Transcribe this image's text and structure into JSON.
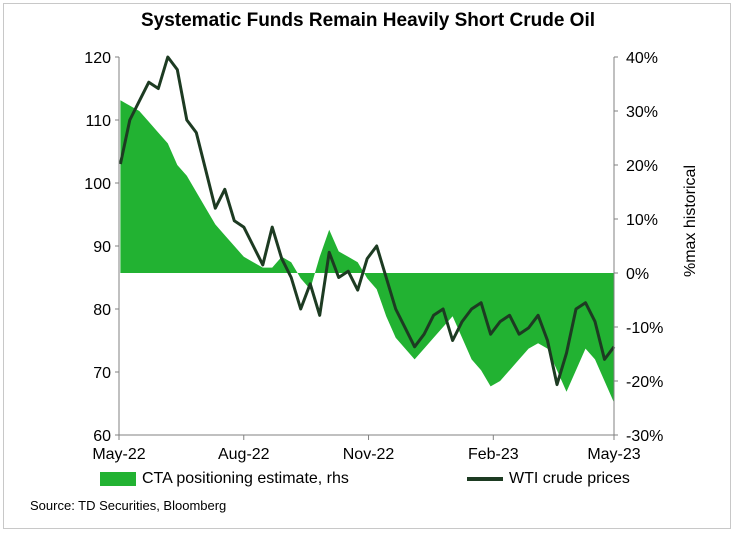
{
  "title": "Systematic Funds Remain Heavily Short Crude Oil",
  "source": "Source: TD Securities, Bloomberg",
  "colors": {
    "cta_fill": "#22b232",
    "wti_line": "#1d3b22",
    "axis": "#333333"
  },
  "chart_data": {
    "type": "area",
    "title": "Systematic Funds Remain Heavily Short Crude Oil",
    "xlabel": "",
    "ylabel_left": "",
    "ylabel_right": "%max historical",
    "ylim_left": [
      60,
      120
    ],
    "ylim_right": [
      -30,
      40
    ],
    "yticks_left": [
      "120",
      "110",
      "100",
      "90",
      "80",
      "70",
      "60"
    ],
    "yticks_right": [
      "40%",
      "30%",
      "20%",
      "10%",
      "0%",
      "-10%",
      "-20%",
      "-30%"
    ],
    "yticks_left_values": [
      120,
      110,
      100,
      90,
      80,
      70,
      60
    ],
    "yticks_right_values": [
      40,
      30,
      20,
      10,
      0,
      -10,
      -20,
      -30
    ],
    "x_start": "2022-05-01",
    "x_end": "2023-05-01",
    "xtick_labels": [
      "May-22",
      "Aug-22",
      "Nov-22",
      "Feb-23",
      "May-23"
    ],
    "xtick_dates": [
      "2022-05-01",
      "2022-08-01",
      "2022-11-01",
      "2023-02-01",
      "2023-05-01"
    ],
    "grid": false,
    "legend_position": "bottom",
    "series": [
      {
        "name": "CTA positioning estimate, rhs",
        "type": "area",
        "axis": "right",
        "x": [
          "2022-05-02",
          "2022-05-09",
          "2022-05-16",
          "2022-05-23",
          "2022-05-30",
          "2022-06-06",
          "2022-06-13",
          "2022-06-20",
          "2022-06-27",
          "2022-07-04",
          "2022-07-11",
          "2022-07-18",
          "2022-07-25",
          "2022-08-01",
          "2022-08-08",
          "2022-08-15",
          "2022-08-22",
          "2022-08-29",
          "2022-09-05",
          "2022-09-12",
          "2022-09-19",
          "2022-09-26",
          "2022-10-03",
          "2022-10-10",
          "2022-10-17",
          "2022-10-24",
          "2022-10-31",
          "2022-11-07",
          "2022-11-14",
          "2022-11-21",
          "2022-11-28",
          "2022-12-05",
          "2022-12-12",
          "2022-12-19",
          "2022-12-26",
          "2023-01-02",
          "2023-01-09",
          "2023-01-16",
          "2023-01-23",
          "2023-01-30",
          "2023-02-06",
          "2023-02-13",
          "2023-02-20",
          "2023-02-27",
          "2023-03-06",
          "2023-03-13",
          "2023-03-20",
          "2023-03-27",
          "2023-04-03",
          "2023-04-10",
          "2023-04-17",
          "2023-04-24",
          "2023-05-01"
        ],
        "values": [
          32,
          31,
          30,
          28,
          26,
          24,
          20,
          18,
          15,
          12,
          9,
          7,
          5,
          3,
          2,
          1,
          1,
          3,
          2,
          -1,
          -3,
          3,
          8,
          4,
          3,
          2,
          -1,
          -3,
          -8,
          -12,
          -14,
          -16,
          -14,
          -12,
          -10,
          -8,
          -12,
          -16,
          -18,
          -21,
          -20,
          -18,
          -16,
          -14,
          -13,
          -14,
          -18,
          -22,
          -18,
          -14,
          -16,
          -20,
          -24
        ]
      },
      {
        "name": "WTI crude prices",
        "type": "line",
        "axis": "left",
        "x": [
          "2022-05-02",
          "2022-05-09",
          "2022-05-16",
          "2022-05-23",
          "2022-05-30",
          "2022-06-06",
          "2022-06-13",
          "2022-06-20",
          "2022-06-27",
          "2022-07-04",
          "2022-07-11",
          "2022-07-18",
          "2022-07-25",
          "2022-08-01",
          "2022-08-08",
          "2022-08-15",
          "2022-08-22",
          "2022-08-29",
          "2022-09-05",
          "2022-09-12",
          "2022-09-19",
          "2022-09-26",
          "2022-10-03",
          "2022-10-10",
          "2022-10-17",
          "2022-10-24",
          "2022-10-31",
          "2022-11-07",
          "2022-11-14",
          "2022-11-21",
          "2022-11-28",
          "2022-12-05",
          "2022-12-12",
          "2022-12-19",
          "2022-12-26",
          "2023-01-02",
          "2023-01-09",
          "2023-01-16",
          "2023-01-23",
          "2023-01-30",
          "2023-02-06",
          "2023-02-13",
          "2023-02-20",
          "2023-02-27",
          "2023-03-06",
          "2023-03-13",
          "2023-03-20",
          "2023-03-27",
          "2023-04-03",
          "2023-04-10",
          "2023-04-17",
          "2023-04-24",
          "2023-05-01"
        ],
        "values": [
          103,
          110,
          113,
          116,
          115,
          120,
          118,
          110,
          108,
          102,
          96,
          99,
          94,
          93,
          90,
          87,
          93,
          88,
          85,
          80,
          84,
          79,
          89,
          85,
          86,
          83,
          88,
          90,
          85,
          80,
          77,
          74,
          76,
          79,
          80,
          75,
          78,
          80,
          81,
          76,
          78,
          79,
          76,
          77,
          79,
          75,
          68,
          73,
          80,
          81,
          78,
          72,
          74
        ]
      }
    ]
  }
}
